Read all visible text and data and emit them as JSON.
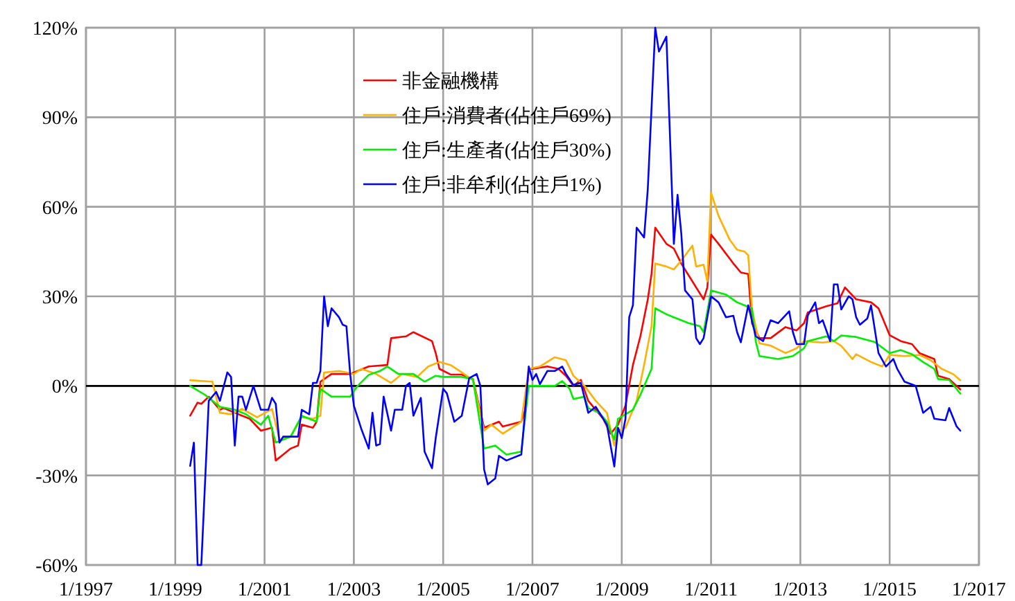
{
  "chart_data": {
    "type": "line",
    "xlim": [
      "1997-01",
      "2017-01"
    ],
    "ylim": [
      -60,
      120
    ],
    "xticks": [
      {
        "value": "1997-01",
        "label": "1/1997"
      },
      {
        "value": "1999-01",
        "label": "1/1999"
      },
      {
        "value": "2001-01",
        "label": "1/2001"
      },
      {
        "value": "2003-01",
        "label": "1/2003"
      },
      {
        "value": "2005-01",
        "label": "1/2005"
      },
      {
        "value": "2007-01",
        "label": "1/2007"
      },
      {
        "value": "2009-01",
        "label": "1/2009"
      },
      {
        "value": "2011-01",
        "label": "1/2011"
      },
      {
        "value": "2013-01",
        "label": "1/2013"
      },
      {
        "value": "2015-01",
        "label": "1/2015"
      },
      {
        "value": "2017-01",
        "label": "1/2017"
      }
    ],
    "yticks": [
      {
        "value": -60,
        "label": "-60%"
      },
      {
        "value": -30,
        "label": "-30%"
      },
      {
        "value": 0,
        "label": "0%"
      },
      {
        "value": 30,
        "label": "30%"
      },
      {
        "value": 60,
        "label": "60%"
      },
      {
        "value": 90,
        "label": "90%"
      },
      {
        "value": 120,
        "label": "120%"
      }
    ],
    "grid": true,
    "legend": "top",
    "marker": "none",
    "line_style": "solid",
    "ref_lines": [
      {
        "axis": "y",
        "value": 0,
        "color": "#000000"
      }
    ],
    "series": [
      {
        "name": "非金融機構",
        "color": "#ff0000",
        "x": [
          "1999-05",
          "1999-07",
          "1999-08",
          "1999-10",
          "2000-01",
          "2000-02",
          "2000-05",
          "2000-07",
          "2000-09",
          "2000-12",
          "2001-03",
          "2001-04",
          "2001-06",
          "2001-08",
          "2001-10",
          "2001-11",
          "2002-02",
          "2002-03",
          "2002-04",
          "2002-07",
          "2002-12",
          "2003-05",
          "2003-10",
          "2003-11",
          "2004-03",
          "2004-05",
          "2004-10",
          "2004-11",
          "2004-12",
          "2005-03",
          "2005-06",
          "2005-09",
          "2005-12",
          "2006-04",
          "2006-05",
          "2006-10",
          "2006-11",
          "2006-12",
          "2007-01",
          "2007-05",
          "2007-08",
          "2007-10",
          "2007-12",
          "2008-02",
          "2008-04",
          "2008-06",
          "2008-08",
          "2008-10",
          "2008-12",
          "2009-02",
          "2009-04",
          "2009-06",
          "2009-08",
          "2009-09",
          "2009-10",
          "2010-01",
          "2010-03",
          "2010-05",
          "2010-08",
          "2010-11",
          "2010-12",
          "2011-01",
          "2011-03",
          "2011-07",
          "2011-09",
          "2011-11",
          "2011-12",
          "2012-02",
          "2012-05",
          "2012-09",
          "2012-12",
          "2013-02",
          "2013-03",
          "2013-08",
          "2013-11",
          "2014-01",
          "2014-04",
          "2014-08",
          "2014-10",
          "2015-01",
          "2015-04",
          "2015-07",
          "2015-09",
          "2016-01",
          "2016-02",
          "2016-05",
          "2016-07",
          "2016-08"
        ],
        "values": [
          -10,
          -5.6,
          -6,
          -3.6,
          -8,
          -7.4,
          -9,
          -10,
          -11,
          -15,
          -14,
          -25,
          -23,
          -21,
          -20,
          -13,
          -14,
          -12,
          1.4,
          4,
          4,
          6.5,
          7,
          16,
          16.6,
          18,
          15,
          11,
          5.7,
          3.8,
          3.8,
          2.3,
          -14,
          -12,
          -13.6,
          -12,
          -8,
          5.7,
          5.7,
          6.5,
          5.7,
          3.4,
          0,
          2,
          -5,
          -8,
          -11,
          -16,
          -13,
          -6.6,
          7,
          16.6,
          29,
          37.5,
          53,
          47.6,
          46,
          41,
          35,
          29,
          33,
          50.7,
          47.6,
          41,
          38,
          37.5,
          21,
          16,
          16,
          19.7,
          18.6,
          21,
          24.6,
          26.7,
          27.7,
          33,
          29,
          28,
          26,
          17,
          15,
          14,
          11,
          9,
          3.4,
          2.3,
          0,
          -1.2
        ]
      },
      {
        "name": "住戶:消費者(佔住戶69%)",
        "color": "#ffb000",
        "x": [
          "1999-05",
          "1999-11",
          "2000-01",
          "2000-04",
          "2000-07",
          "2000-11",
          "2001-03",
          "2001-05",
          "2001-08",
          "2001-11",
          "2002-02",
          "2002-04",
          "2002-05",
          "2002-09",
          "2003-01",
          "2003-03",
          "2003-07",
          "2003-11",
          "2004-02",
          "2004-06",
          "2004-09",
          "2004-12",
          "2005-03",
          "2005-06",
          "2005-09",
          "2005-12",
          "2006-02",
          "2006-05",
          "2006-10",
          "2006-12",
          "2007-03",
          "2007-07",
          "2007-10",
          "2007-12",
          "2008-03",
          "2008-06",
          "2008-09",
          "2008-11",
          "2008-12",
          "2009-02",
          "2009-05",
          "2009-07",
          "2009-09",
          "2009-10",
          "2010-01",
          "2010-03",
          "2010-05",
          "2010-08",
          "2010-09",
          "2010-11",
          "2010-12",
          "2011-01",
          "2011-03",
          "2011-06",
          "2011-08",
          "2011-10",
          "2011-11",
          "2011-12",
          "2012-02",
          "2012-05",
          "2012-09",
          "2012-12",
          "2013-02",
          "2013-07",
          "2013-10",
          "2013-12",
          "2014-03",
          "2014-04",
          "2014-08",
          "2014-11",
          "2015-01",
          "2015-05",
          "2015-09",
          "2015-12",
          "2016-03",
          "2016-06",
          "2016-08"
        ],
        "values": [
          1.9,
          1.4,
          -9,
          -9.5,
          -7.7,
          -10.5,
          -7.7,
          -18,
          -17,
          -10.5,
          -11,
          -10,
          4.5,
          5,
          4,
          5.7,
          4,
          1,
          4,
          3,
          6.5,
          8,
          7,
          4.5,
          1.9,
          -15,
          -13,
          -16,
          -12,
          5.7,
          6.5,
          9.6,
          8.6,
          3.4,
          0,
          -5,
          -9,
          -20,
          -15,
          -14,
          -5,
          7,
          20,
          41,
          40,
          39,
          42,
          47,
          40,
          40.6,
          35,
          64.7,
          57,
          49,
          45.6,
          45,
          43.7,
          25.6,
          14.3,
          13.5,
          11,
          12.6,
          15,
          14.5,
          15,
          13.4,
          9,
          10.6,
          8,
          6.5,
          10.4,
          10,
          10.4,
          8.6,
          5.7,
          4,
          1.9
        ]
      },
      {
        "name": "住戶:生產者(佔住戶30%)",
        "color": "#00ee00",
        "x": [
          "1999-05",
          "1999-09",
          "2000-01",
          "2000-05",
          "2000-08",
          "2000-12",
          "2001-02",
          "2001-04",
          "2001-08",
          "2001-11",
          "2002-03",
          "2002-04",
          "2002-07",
          "2002-12",
          "2003-02",
          "2003-05",
          "2003-08",
          "2003-10",
          "2004-01",
          "2004-05",
          "2004-08",
          "2004-11",
          "2005-01",
          "2005-06",
          "2005-09",
          "2005-12",
          "2006-03",
          "2006-06",
          "2006-10",
          "2006-12",
          "2007-07",
          "2007-09",
          "2007-11",
          "2007-12",
          "2008-03",
          "2008-04",
          "2008-07",
          "2008-09",
          "2008-11",
          "2008-12",
          "2009-04",
          "2009-06",
          "2009-09",
          "2009-10",
          "2010-01",
          "2010-03",
          "2010-07",
          "2010-10",
          "2010-11",
          "2011-01",
          "2011-05",
          "2011-08",
          "2011-10",
          "2011-12",
          "2012-01",
          "2012-02",
          "2012-07",
          "2012-11",
          "2013-02",
          "2013-03",
          "2013-08",
          "2013-10",
          "2013-12",
          "2014-04",
          "2014-09",
          "2015-01",
          "2015-04",
          "2015-07",
          "2015-10",
          "2016-01",
          "2016-02",
          "2016-05",
          "2016-08"
        ],
        "values": [
          0,
          -3,
          -7,
          -8,
          -9.5,
          -13,
          -10,
          -19,
          -17,
          -10,
          -12,
          -1,
          -3.6,
          -3.6,
          0,
          3.7,
          5,
          6.5,
          4,
          4,
          1.4,
          3.4,
          3,
          3,
          2.3,
          -21,
          -20,
          -23,
          -22,
          0,
          0,
          1.6,
          -1,
          -4.4,
          -3.6,
          -7.5,
          -9,
          -12,
          -18,
          -11,
          -8,
          -3,
          5.7,
          26,
          24,
          23,
          21,
          20,
          18,
          32,
          30.6,
          28,
          27,
          26,
          15,
          10,
          9,
          10,
          12.6,
          15,
          16.6,
          15,
          16.9,
          16.4,
          14.7,
          11,
          12,
          10.6,
          8,
          5.7,
          2.3,
          2,
          -2.6
        ]
      },
      {
        "name": "住戶:非牟利(佔住戶1%)",
        "color": "#0000ff",
        "x": [
          "1999-05",
          "1999-06",
          "1999-07",
          "1999-08",
          "1999-10",
          "1999-12",
          "2000-01",
          "2000-03",
          "2000-04",
          "2000-05",
          "2000-06",
          "2000-07",
          "2000-08",
          "2000-10",
          "2000-12",
          "2001-02",
          "2001-03",
          "2001-04",
          "2001-05",
          "2001-06",
          "2001-07",
          "2001-10",
          "2001-11",
          "2002-01",
          "2002-02",
          "2002-03",
          "2002-04",
          "2002-05",
          "2002-06",
          "2002-07",
          "2002-09",
          "2002-10",
          "2002-11",
          "2002-12",
          "2003-01",
          "2003-03",
          "2003-05",
          "2003-06",
          "2003-07",
          "2003-08",
          "2003-09",
          "2003-11",
          "2003-12",
          "2004-02",
          "2004-03",
          "2004-04",
          "2004-05",
          "2004-07",
          "2004-08",
          "2004-10",
          "2004-11",
          "2005-01",
          "2005-02",
          "2005-04",
          "2005-06",
          "2005-08",
          "2005-10",
          "2005-11",
          "2005-12",
          "2006-01",
          "2006-03",
          "2006-04",
          "2006-06",
          "2006-10",
          "2006-11",
          "2006-12",
          "2007-01",
          "2007-02",
          "2007-03",
          "2007-05",
          "2007-07",
          "2007-09",
          "2007-10",
          "2007-12",
          "2008-02",
          "2008-04",
          "2008-06",
          "2008-07",
          "2008-09",
          "2008-11",
          "2008-12",
          "2009-01",
          "2009-02",
          "2009-03",
          "2009-04",
          "2009-05",
          "2009-07",
          "2009-08",
          "2009-10",
          "2009-11",
          "2010-01",
          "2010-03",
          "2010-04",
          "2010-05",
          "2010-06",
          "2010-08",
          "2010-09",
          "2010-10",
          "2010-11",
          "2011-01",
          "2011-03",
          "2011-05",
          "2011-07",
          "2011-08",
          "2011-09",
          "2011-11",
          "2012-01",
          "2012-03",
          "2012-05",
          "2012-07",
          "2012-10",
          "2012-11",
          "2012-12",
          "2013-02",
          "2013-03",
          "2013-05",
          "2013-06",
          "2013-07",
          "2013-09",
          "2013-10",
          "2013-11",
          "2013-12",
          "2014-02",
          "2014-03",
          "2014-04",
          "2014-05",
          "2014-07",
          "2014-08",
          "2014-10",
          "2014-12",
          "2015-02",
          "2015-03",
          "2015-05",
          "2015-08",
          "2015-10",
          "2015-12",
          "2016-01",
          "2016-04",
          "2016-05",
          "2016-07",
          "2016-08"
        ],
        "values": [
          -26.8,
          -19,
          -60,
          -60,
          -5,
          -2,
          -5,
          4.5,
          3,
          -20,
          -3.6,
          -3.6,
          -8,
          0,
          -8,
          -8,
          -4,
          -6,
          -19,
          -17,
          -17,
          -17,
          -8,
          -9.5,
          1,
          1,
          5,
          30,
          20,
          26,
          23,
          20.5,
          20,
          4,
          -6.6,
          -14.4,
          -21,
          -9,
          -20,
          -19.5,
          -3.6,
          -15,
          -8,
          -8,
          0,
          1,
          -10,
          -4,
          -22,
          -27.6,
          -17.5,
          -1,
          -2.5,
          -12,
          -10,
          2.6,
          4,
          0,
          -28,
          -33,
          -31,
          -23.4,
          -25,
          -23,
          -9,
          6.5,
          2,
          4,
          0.6,
          5,
          5,
          6.5,
          4,
          0.3,
          1,
          -9,
          -7,
          -9,
          -13,
          -27,
          -14,
          -17.5,
          -11,
          23,
          27,
          53,
          49.7,
          66,
          120,
          112,
          117,
          47.6,
          64,
          51,
          32,
          29,
          16,
          14,
          16,
          30,
          28,
          23,
          23.5,
          18,
          14.6,
          27,
          16.6,
          15,
          22,
          21,
          25,
          18,
          14,
          14,
          23.6,
          28,
          21,
          22,
          15,
          34,
          34,
          25.6,
          30,
          29,
          23,
          20.5,
          22.6,
          27,
          11,
          6.5,
          9,
          5.8,
          1.4,
          0,
          -9,
          -7,
          -11,
          -11.5,
          -7.4,
          -13.6,
          -15
        ]
      }
    ]
  }
}
